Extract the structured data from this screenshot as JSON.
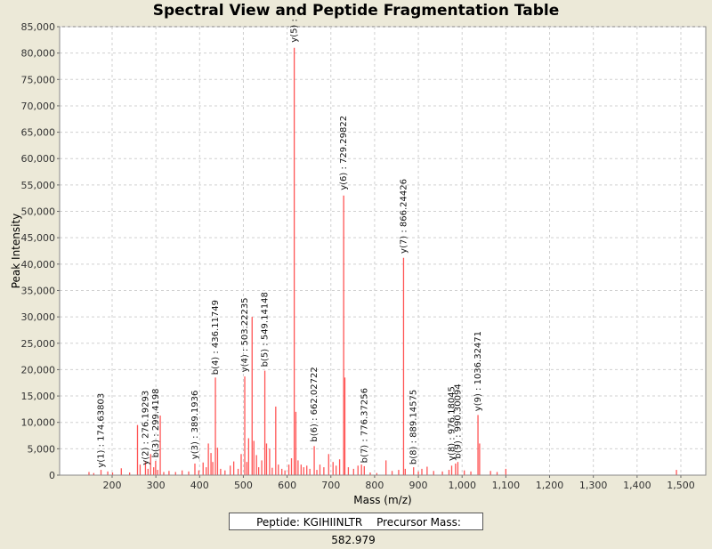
{
  "chart_data": {
    "type": "bar",
    "title": "Spectral View and Peptide Fragmentation Table",
    "xlabel": "Mass (m/z)",
    "ylabel": "Peak Intensity",
    "xlim": [
      80,
      1557
    ],
    "ylim": [
      0,
      85000
    ],
    "grid": true,
    "series_color": "#ff5555",
    "x_ticks": [
      200,
      300,
      400,
      500,
      600,
      700,
      800,
      900,
      1000,
      1100,
      1200,
      1300,
      1400,
      1500
    ],
    "x_tick_labels": [
      "200",
      "300",
      "400",
      "500",
      "600",
      "700",
      "800",
      "900",
      "1,000",
      "1,100",
      "1,200",
      "1,300",
      "1,400",
      "1,500"
    ],
    "y_ticks": [
      0,
      5000,
      10000,
      15000,
      20000,
      25000,
      30000,
      35000,
      40000,
      45000,
      50000,
      55000,
      60000,
      65000,
      70000,
      75000,
      80000,
      85000
    ],
    "y_tick_labels": [
      "0",
      "5,000",
      "10,000",
      "15,000",
      "20,000",
      "25,000",
      "30,000",
      "35,000",
      "40,000",
      "45,000",
      "50,000",
      "55,000",
      "60,000",
      "65,000",
      "70,000",
      "75,000",
      "80,000",
      "85,000"
    ],
    "peaks": [
      {
        "mz": 147.1,
        "intensity": 600
      },
      {
        "mz": 158.0,
        "intensity": 400
      },
      {
        "mz": 174.6,
        "intensity": 1000
      },
      {
        "mz": 190.0,
        "intensity": 700
      },
      {
        "mz": 201.0,
        "intensity": 500
      },
      {
        "mz": 221.0,
        "intensity": 1300
      },
      {
        "mz": 240.0,
        "intensity": 500
      },
      {
        "mz": 258.0,
        "intensity": 9500
      },
      {
        "mz": 264.0,
        "intensity": 2000
      },
      {
        "mz": 276.2,
        "intensity": 2500
      },
      {
        "mz": 282.0,
        "intensity": 1200
      },
      {
        "mz": 288.0,
        "intensity": 4000
      },
      {
        "mz": 295.0,
        "intensity": 1500
      },
      {
        "mz": 299.4,
        "intensity": 2700
      },
      {
        "mz": 304.0,
        "intensity": 1000
      },
      {
        "mz": 310.0,
        "intensity": 11300
      },
      {
        "mz": 318.0,
        "intensity": 600
      },
      {
        "mz": 330.0,
        "intensity": 800
      },
      {
        "mz": 345.0,
        "intensity": 600
      },
      {
        "mz": 360.0,
        "intensity": 900
      },
      {
        "mz": 375.0,
        "intensity": 700
      },
      {
        "mz": 389.2,
        "intensity": 2200
      },
      {
        "mz": 398.0,
        "intensity": 900
      },
      {
        "mz": 408.0,
        "intensity": 2400
      },
      {
        "mz": 415.0,
        "intensity": 1500
      },
      {
        "mz": 420.0,
        "intensity": 6000
      },
      {
        "mz": 426.0,
        "intensity": 4200
      },
      {
        "mz": 430.0,
        "intensity": 2500
      },
      {
        "mz": 436.1,
        "intensity": 18500
      },
      {
        "mz": 441.0,
        "intensity": 5200
      },
      {
        "mz": 448.0,
        "intensity": 1200
      },
      {
        "mz": 458.0,
        "intensity": 900
      },
      {
        "mz": 470.0,
        "intensity": 1800
      },
      {
        "mz": 478.0,
        "intensity": 2600
      },
      {
        "mz": 488.0,
        "intensity": 1200
      },
      {
        "mz": 495.0,
        "intensity": 4000
      },
      {
        "mz": 503.2,
        "intensity": 18700
      },
      {
        "mz": 508.0,
        "intensity": 2500
      },
      {
        "mz": 512.0,
        "intensity": 7000
      },
      {
        "mz": 520.0,
        "intensity": 30000
      },
      {
        "mz": 524.0,
        "intensity": 6500
      },
      {
        "mz": 530.0,
        "intensity": 3800
      },
      {
        "mz": 535.0,
        "intensity": 1500
      },
      {
        "mz": 542.0,
        "intensity": 2800
      },
      {
        "mz": 549.1,
        "intensity": 19800
      },
      {
        "mz": 553.0,
        "intensity": 6000
      },
      {
        "mz": 560.0,
        "intensity": 5000
      },
      {
        "mz": 566.0,
        "intensity": 1400
      },
      {
        "mz": 574.0,
        "intensity": 13000
      },
      {
        "mz": 580.0,
        "intensity": 2000
      },
      {
        "mz": 588.0,
        "intensity": 1200
      },
      {
        "mz": 595.0,
        "intensity": 900
      },
      {
        "mz": 604.0,
        "intensity": 2000
      },
      {
        "mz": 610.0,
        "intensity": 3200
      },
      {
        "mz": 616.3,
        "intensity": 81000
      },
      {
        "mz": 620.0,
        "intensity": 12000
      },
      {
        "mz": 625.0,
        "intensity": 2800
      },
      {
        "mz": 632.0,
        "intensity": 2000
      },
      {
        "mz": 638.0,
        "intensity": 1500
      },
      {
        "mz": 645.0,
        "intensity": 1800
      },
      {
        "mz": 652.0,
        "intensity": 1200
      },
      {
        "mz": 662.0,
        "intensity": 5500
      },
      {
        "mz": 668.0,
        "intensity": 1000
      },
      {
        "mz": 675.0,
        "intensity": 2000
      },
      {
        "mz": 684.0,
        "intensity": 1500
      },
      {
        "mz": 695.0,
        "intensity": 4000
      },
      {
        "mz": 705.0,
        "intensity": 2500
      },
      {
        "mz": 712.0,
        "intensity": 1800
      },
      {
        "mz": 720.0,
        "intensity": 3000
      },
      {
        "mz": 729.3,
        "intensity": 53000
      },
      {
        "mz": 732.0,
        "intensity": 18500
      },
      {
        "mz": 740.0,
        "intensity": 1500
      },
      {
        "mz": 752.0,
        "intensity": 1200
      },
      {
        "mz": 762.0,
        "intensity": 1800
      },
      {
        "mz": 770.0,
        "intensity": 2000
      },
      {
        "mz": 776.4,
        "intensity": 1700
      },
      {
        "mz": 790.0,
        "intensity": 500
      },
      {
        "mz": 805.0,
        "intensity": 400
      },
      {
        "mz": 826.0,
        "intensity": 2800
      },
      {
        "mz": 840.0,
        "intensity": 800
      },
      {
        "mz": 855.0,
        "intensity": 1000
      },
      {
        "mz": 866.2,
        "intensity": 41200
      },
      {
        "mz": 870.0,
        "intensity": 1200
      },
      {
        "mz": 889.1,
        "intensity": 1500
      },
      {
        "mz": 900.0,
        "intensity": 700
      },
      {
        "mz": 908.0,
        "intensity": 1200
      },
      {
        "mz": 920.0,
        "intensity": 1600
      },
      {
        "mz": 935.0,
        "intensity": 800
      },
      {
        "mz": 955.0,
        "intensity": 700
      },
      {
        "mz": 970.0,
        "intensity": 1000
      },
      {
        "mz": 976.2,
        "intensity": 1800
      },
      {
        "mz": 985.0,
        "intensity": 2200
      },
      {
        "mz": 990.3,
        "intensity": 2500
      },
      {
        "mz": 1005.0,
        "intensity": 900
      },
      {
        "mz": 1020.0,
        "intensity": 700
      },
      {
        "mz": 1036.3,
        "intensity": 11400
      },
      {
        "mz": 1040.0,
        "intensity": 6000
      },
      {
        "mz": 1065.0,
        "intensity": 800
      },
      {
        "mz": 1080.0,
        "intensity": 600
      },
      {
        "mz": 1100.0,
        "intensity": 1200
      },
      {
        "mz": 1490.0,
        "intensity": 1000
      }
    ],
    "annotations": [
      {
        "mz": 174.6,
        "label": "y(1) : 174.63803",
        "base": 900
      },
      {
        "mz": 276.2,
        "label": "y(2) : 276.19293",
        "base": 1400
      },
      {
        "mz": 299.4,
        "label": "b(3) : 299.4198",
        "base": 2800
      },
      {
        "mz": 389.2,
        "label": "y(3) : 389.1936",
        "base": 2500
      },
      {
        "mz": 436.1,
        "label": "b(4) : 436.11749",
        "base": 18500
      },
      {
        "mz": 503.2,
        "label": "y(4) : 503.22235",
        "base": 19000
      },
      {
        "mz": 549.1,
        "label": "b(5) : 549.14148",
        "base": 20000
      },
      {
        "mz": 616.3,
        "label": "y(5) :",
        "base": 81500
      },
      {
        "mz": 662.0,
        "label": "b(6) : 662.02722",
        "base": 5800
      },
      {
        "mz": 729.3,
        "label": "y(6) : 729.29822",
        "base": 53500
      },
      {
        "mz": 776.4,
        "label": "b(7) : 776.37256",
        "base": 1800
      },
      {
        "mz": 866.2,
        "label": "y(7) : 866.24426",
        "base": 41500
      },
      {
        "mz": 889.1,
        "label": "b(8) : 889.14575",
        "base": 1500
      },
      {
        "mz": 976.2,
        "label": "y(8) : 976.18045",
        "base": 2200
      },
      {
        "mz": 990.3,
        "label": "b(9) : 990.30094",
        "base": 2600
      },
      {
        "mz": 1036.3,
        "label": "y(9) : 1036.32471",
        "base": 11600
      }
    ]
  },
  "legend": {
    "peptide": "Peptide: KGIHIINLTR",
    "precursor": "Precursor Mass: 582.979"
  }
}
